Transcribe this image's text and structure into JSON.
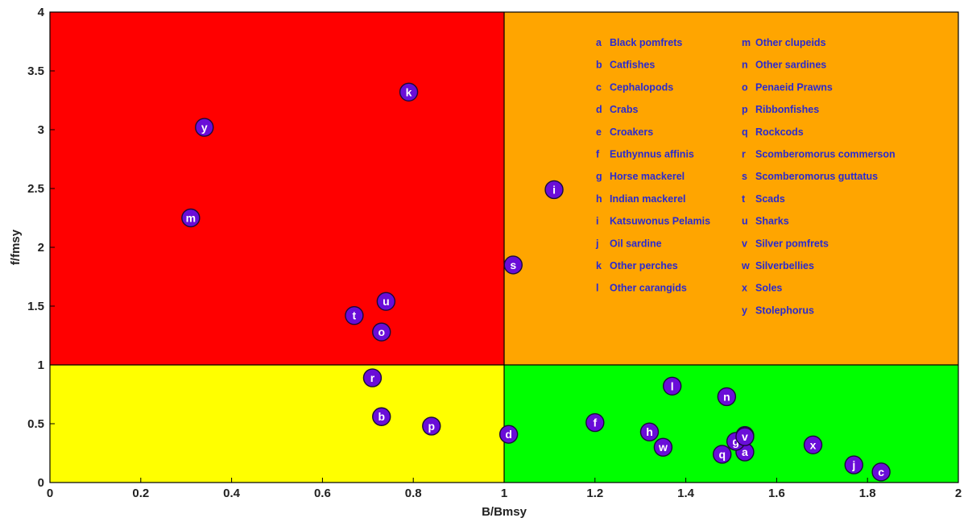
{
  "chart_data": {
    "type": "scatter",
    "xlabel": "B/Bmsy",
    "ylabel": "f/fmsy",
    "xlim": [
      0,
      2
    ],
    "ylim": [
      0,
      4
    ],
    "x_ticks": [
      "0",
      "0.2",
      "0.4",
      "0.6",
      "0.8",
      "1",
      "1.2",
      "1.4",
      "1.6",
      "1.8",
      "2"
    ],
    "y_ticks": [
      "0",
      "0.5",
      "1",
      "1.5",
      "2",
      "2.5",
      "3",
      "3.5",
      "4"
    ],
    "grid": false,
    "regions": [
      {
        "x": [
          0,
          1
        ],
        "y": [
          1,
          4
        ],
        "color": "#ff0000"
      },
      {
        "x": [
          1,
          2
        ],
        "y": [
          1,
          4
        ],
        "color": "#ffa500"
      },
      {
        "x": [
          0,
          1
        ],
        "y": [
          0,
          1
        ],
        "color": "#ffff00"
      },
      {
        "x": [
          1,
          2
        ],
        "y": [
          0,
          1
        ],
        "color": "#00ff00"
      }
    ],
    "marker_color": "#6a0dd8",
    "legend_position": "top-right",
    "legend": [
      {
        "key": "a",
        "label": "Black pomfrets"
      },
      {
        "key": "b",
        "label": "Catfishes"
      },
      {
        "key": "c",
        "label": "Cephalopods"
      },
      {
        "key": "d",
        "label": "Crabs"
      },
      {
        "key": "e",
        "label": "Croakers"
      },
      {
        "key": "f",
        "label": "Euthynnus affinis"
      },
      {
        "key": "g",
        "label": "Horse mackerel"
      },
      {
        "key": "h",
        "label": "Indian mackerel"
      },
      {
        "key": "i",
        "label": "Katsuwonus Pelamis"
      },
      {
        "key": "j",
        "label": "Oil sardine"
      },
      {
        "key": "k",
        "label": "Other perches"
      },
      {
        "key": "l",
        "label": "Other carangids"
      },
      {
        "key": "m",
        "label": "Other clupeids"
      },
      {
        "key": "n",
        "label": "Other sardines"
      },
      {
        "key": "o",
        "label": "Penaeid Prawns"
      },
      {
        "key": "p",
        "label": "Ribbonfishes"
      },
      {
        "key": "q",
        "label": "Rockcods"
      },
      {
        "key": "r",
        "label": "Scomberomorus commerson"
      },
      {
        "key": "s",
        "label": "Scomberomorus guttatus"
      },
      {
        "key": "t",
        "label": "Scads"
      },
      {
        "key": "u",
        "label": "Sharks"
      },
      {
        "key": "v",
        "label": "Silver pomfrets"
      },
      {
        "key": "w",
        "label": "Silverbellies"
      },
      {
        "key": "x",
        "label": "Soles"
      },
      {
        "key": "y",
        "label": "Stolephorus"
      }
    ],
    "points": [
      {
        "label": "a",
        "x": 1.53,
        "y": 0.26
      },
      {
        "label": "b",
        "x": 0.73,
        "y": 0.56
      },
      {
        "label": "c",
        "x": 1.83,
        "y": 0.09
      },
      {
        "label": "d",
        "x": 1.01,
        "y": 0.41
      },
      {
        "label": "e",
        "x": 1.53,
        "y": 0.4
      },
      {
        "label": "f",
        "x": 1.2,
        "y": 0.51
      },
      {
        "label": "g",
        "x": 1.51,
        "y": 0.35
      },
      {
        "label": "h",
        "x": 1.32,
        "y": 0.43
      },
      {
        "label": "i",
        "x": 1.11,
        "y": 2.49
      },
      {
        "label": "j",
        "x": 1.77,
        "y": 0.15
      },
      {
        "label": "k",
        "x": 0.79,
        "y": 3.32
      },
      {
        "label": "l",
        "x": 1.37,
        "y": 0.82
      },
      {
        "label": "m",
        "x": 0.31,
        "y": 2.25
      },
      {
        "label": "n",
        "x": 1.49,
        "y": 0.73
      },
      {
        "label": "o",
        "x": 0.73,
        "y": 1.28
      },
      {
        "label": "p",
        "x": 0.84,
        "y": 0.48
      },
      {
        "label": "q",
        "x": 1.48,
        "y": 0.24
      },
      {
        "label": "r",
        "x": 0.71,
        "y": 0.89
      },
      {
        "label": "s",
        "x": 1.02,
        "y": 1.85
      },
      {
        "label": "t",
        "x": 0.67,
        "y": 1.42
      },
      {
        "label": "u",
        "x": 0.74,
        "y": 1.54
      },
      {
        "label": "v",
        "x": 1.53,
        "y": 0.39
      },
      {
        "label": "w",
        "x": 1.35,
        "y": 0.3
      },
      {
        "label": "x",
        "x": 1.68,
        "y": 0.32
      },
      {
        "label": "y",
        "x": 0.34,
        "y": 3.02
      }
    ]
  }
}
